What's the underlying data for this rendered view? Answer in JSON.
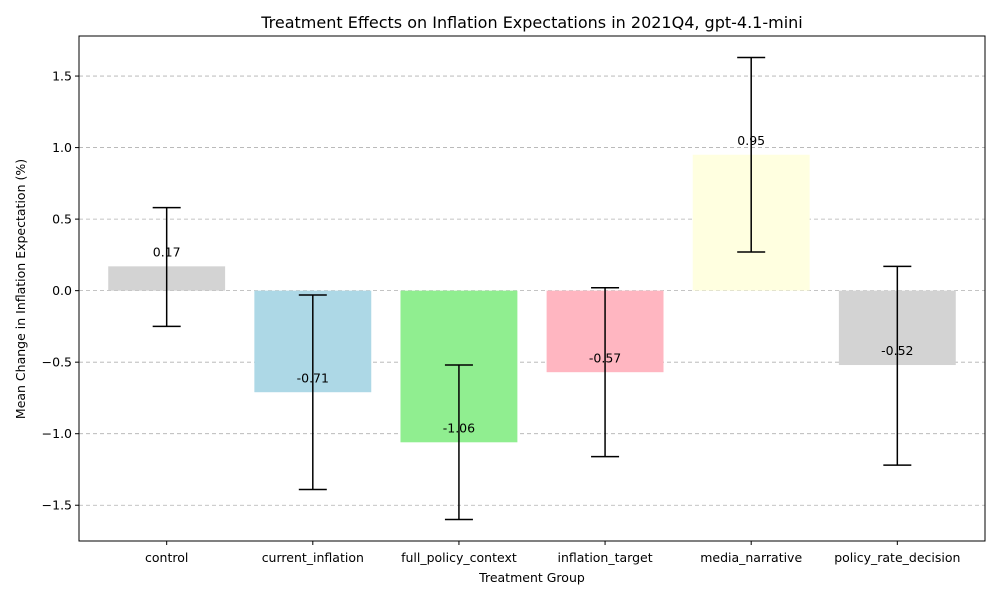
{
  "chart_data": {
    "type": "bar",
    "title": "Treatment Effects on Inflation Expectations in 2021Q4, gpt-4.1-mini",
    "xlabel": "Treatment Group",
    "ylabel": "Mean Change in Inflation Expectation (%)",
    "ylim": [
      -1.75,
      1.78
    ],
    "yticks": [
      -1.5,
      -1.0,
      -0.5,
      0.0,
      0.5,
      1.0,
      1.5
    ],
    "ytick_labels": [
      "−1.5",
      "−1.0",
      "−0.5",
      "0.0",
      "0.5",
      "1.0",
      "1.5"
    ],
    "grid": true,
    "categories": [
      "control",
      "current_inflation",
      "full_policy_context",
      "inflation_target",
      "media_narrative",
      "policy_rate_decision"
    ],
    "values": [
      0.17,
      -0.71,
      -1.06,
      -0.57,
      0.95,
      -0.52
    ],
    "value_labels": [
      "0.17",
      "-0.71",
      "-1.06",
      "-0.57",
      "0.95",
      "-0.52"
    ],
    "error_low": [
      -0.25,
      -1.39,
      -1.6,
      -1.16,
      0.27,
      -1.22
    ],
    "error_high": [
      0.58,
      -0.03,
      -0.52,
      0.02,
      1.63,
      0.17
    ],
    "colors": [
      "#d3d3d3",
      "#add8e6",
      "#90ee90",
      "#ffb6c1",
      "#ffffe0",
      "#d3d3d3"
    ]
  }
}
